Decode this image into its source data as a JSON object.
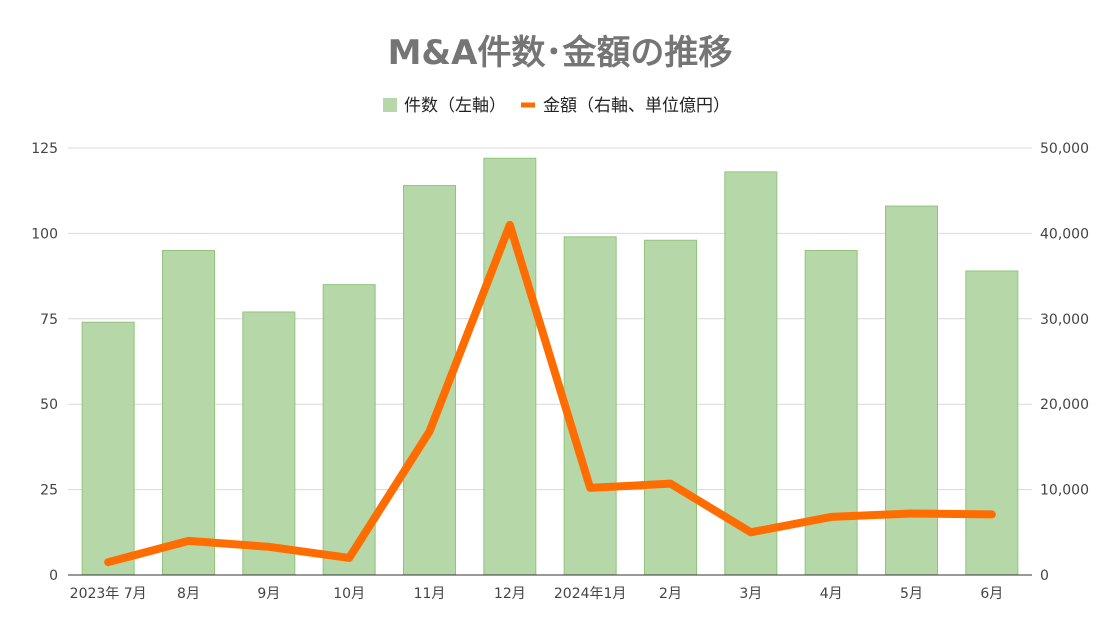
{
  "chart_data": {
    "type": "bar",
    "title": "M&A件数･金額の推移",
    "categories": [
      "2023年 7月",
      "8月",
      "9月",
      "10月",
      "11月",
      "12月",
      "2024年1月",
      "2月",
      "3月",
      "4月",
      "5月",
      "6月"
    ],
    "series": [
      {
        "name": "件数（左軸）",
        "type": "bar",
        "axis": "left",
        "color": "#b6d7a8",
        "values": [
          74,
          95,
          77,
          85,
          114,
          122,
          99,
          98,
          118,
          95,
          108,
          89
        ]
      },
      {
        "name": "金額（右軸、単位億円）",
        "type": "line",
        "axis": "right",
        "color": "#ff6d01",
        "values": [
          1500,
          4000,
          3300,
          2000,
          16800,
          41000,
          10200,
          10700,
          5000,
          6800,
          7200,
          7100
        ]
      }
    ],
    "y_left": {
      "range": [
        0,
        125
      ],
      "ticks": [
        "0",
        "25",
        "50",
        "75",
        "100",
        "125"
      ]
    },
    "y_right": {
      "range": [
        0,
        50000
      ],
      "ticks": [
        "0",
        "10,000",
        "20,000",
        "30,000",
        "40,000",
        "50,000"
      ]
    },
    "grid": true,
    "legend_position": "top-center"
  }
}
